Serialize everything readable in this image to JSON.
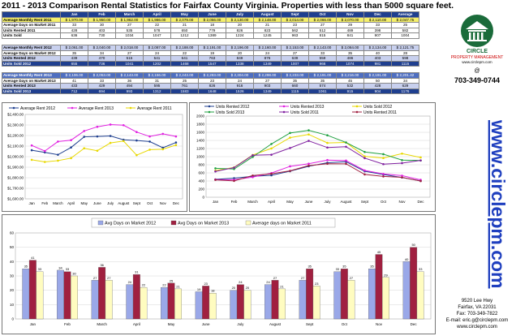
{
  "title": "2011 - 2013 Comparison Rental Statistics for Fairfax County Virginia. Properties with less than 5000 square feet.",
  "months_short": [
    "Jan",
    "Feb",
    "March",
    "April",
    "May",
    "June",
    "July",
    "August",
    "Sept",
    "Oct",
    "Nov",
    "Dec"
  ],
  "tables": [
    {
      "rows": [
        {
          "label": "Average Monthly Rent 2011",
          "cls": "r-rent",
          "values": [
            "$ 1,970.00",
            "$ 1,950.00",
            "$ 1,962.00",
            "$ 1,986.00",
            "$ 2,079.00",
            "$ 2,056.00",
            "$ 2,130.00",
            "$ 2,148.00",
            "$ 2,014.00",
            "$ 2,066.00",
            "$ 2,070.00",
            "$ 2,110.00",
            "$ 2,047.75"
          ]
        },
        {
          "label": "Average Days on Market 2011",
          "cls": "r-avg",
          "values": [
            "33",
            "30",
            "27",
            "22",
            "21",
            "18",
            "20",
            "21",
            "23",
            "27",
            "29",
            "33",
            "25"
          ]
        },
        {
          "label": "Units Rented 2011",
          "cls": "r-rented11",
          "values": [
            "428",
            "403",
            "535",
            "578",
            "650",
            "779",
            "826",
            "823",
            "562",
            "512",
            "489",
            "398",
            "582"
          ]
        },
        {
          "label": "Units Sold",
          "cls": "r-sold11",
          "values": [
            "636",
            "730",
            "1034",
            "1047",
            "1212",
            "1389",
            "1224",
            "1245",
            "963",
            "815",
            "841",
            "907",
            "1004"
          ]
        }
      ]
    },
    {
      "rows": [
        {
          "label": "Average Monthly Rent 2012",
          "cls": "r-avg12",
          "values": [
            "$ 2,061.00",
            "$ 2,040.00",
            "$ 2,018.00",
            "$ 2,087.00",
            "$ 2,188.00",
            "$ 2,191.00",
            "$ 2,196.00",
            "$ 2,160.00",
            "$ 2,153.00",
            "$ 2,143.00",
            "$ 2,084.00",
            "$ 2,134.00",
            "$ 2,121.75"
          ]
        },
        {
          "label": "Average Days on Market 2012",
          "cls": "r-avg",
          "values": [
            "35",
            "34",
            "27",
            "24",
            "22",
            "19",
            "20",
            "24",
            "27",
            "33",
            "35",
            "40",
            "28"
          ]
        },
        {
          "label": "Units Rented 2012",
          "cls": "r-rented",
          "values": [
            "439",
            "470",
            "515",
            "541",
            "641",
            "763",
            "849",
            "876",
            "639",
            "559",
            "486",
            "403",
            "598"
          ]
        },
        {
          "label": "Units Sold 2012",
          "cls": "r-sold",
          "values": [
            "655",
            "736",
            "1041",
            "1202",
            "1468",
            "1547",
            "1338",
            "1349",
            "1007",
            "966",
            "1074",
            "981",
            "1115"
          ]
        }
      ]
    },
    {
      "rows": [
        {
          "label": "Average Monthly Rent 2013",
          "cls": "r-rent13",
          "values": [
            "$ 2,106.00",
            "$ 2,053.00",
            "$ 2,143.00",
            "$ 2,156.00",
            "$ 2,243.00",
            "$ 2,283.00",
            "$ 2,304.00",
            "$ 2,298.00",
            "$ 2,233.00",
            "$ 2,191.00",
            "$ 2,216.00",
            "$ 2,191.00",
            "$ 2,201.42"
          ]
        },
        {
          "label": "Average Days on Market 2013",
          "cls": "r-avg",
          "values": [
            "41",
            "33",
            "36",
            "31",
            "25",
            "23",
            "24",
            "27",
            "35",
            "35",
            "45",
            "50",
            "34"
          ]
        },
        {
          "label": "Units Rented 2013",
          "cls": "r-rented",
          "values": [
            "433",
            "429",
            "494",
            "595",
            "761",
            "826",
            "916",
            "903",
            "660",
            "574",
            "532",
            "428",
            "629"
          ]
        },
        {
          "label": "Units Sold 2013",
          "cls": "r-sold",
          "values": [
            "712",
            "694",
            "993",
            "1312",
            "1583",
            "1648",
            "1526",
            "1349",
            "1115",
            "1061",
            "915",
            "904",
            "1176"
          ]
        }
      ]
    }
  ],
  "table_header": [
    "Jan",
    "Feb",
    "March",
    "April",
    "May",
    "June",
    "July",
    "August",
    "Sept",
    "Oct",
    "Nov",
    "Dec",
    "Average"
  ],
  "chart_data": [
    {
      "type": "line",
      "categories": [
        "Jan",
        "Feb",
        "March",
        "April",
        "May",
        "June",
        "July",
        "August",
        "Sept",
        "Oct",
        "Nov",
        "Dec"
      ],
      "ylim": [
        1600,
        2400
      ],
      "yticks": [
        "$1,600.00",
        "$1,700.00",
        "$1,800.00",
        "$1,900.00",
        "$2,000.00",
        "$2,100.00",
        "$2,200.00",
        "$2,300.00",
        "$2,400.00"
      ],
      "legend_position": "top",
      "series": [
        {
          "name": "Average Rent 2012",
          "color": "#1f3f8f",
          "values": [
            2061,
            2040,
            2018,
            2087,
            2188,
            2191,
            2196,
            2160,
            2153,
            2143,
            2084,
            2134
          ]
        },
        {
          "name": "Average Rent 2013",
          "color": "#e020e0",
          "values": [
            2106,
            2053,
            2143,
            2156,
            2243,
            2283,
            2304,
            2298,
            2233,
            2191,
            2216,
            2191
          ]
        },
        {
          "name": "Average Rent 2011",
          "color": "#e8d800",
          "values": [
            1970,
            1950,
            1962,
            1986,
            2079,
            2056,
            2130,
            2148,
            2014,
            2066,
            2070,
            2110
          ]
        }
      ]
    },
    {
      "type": "line",
      "categories": [
        "Jan",
        "Feb",
        "March",
        "April",
        "May",
        "June",
        "July",
        "August",
        "Sept",
        "Oct",
        "Nov",
        "Dec"
      ],
      "ylim": [
        0,
        2000
      ],
      "yticks": [
        "0",
        "200",
        "400",
        "600",
        "800",
        "1000",
        "1200",
        "1400",
        "1600",
        "1800",
        "2000"
      ],
      "legend_position": "top",
      "series": [
        {
          "name": "Units Rented 2012",
          "color": "#1f3f8f",
          "values": [
            439,
            470,
            515,
            541,
            641,
            763,
            849,
            876,
            639,
            559,
            486,
            403
          ]
        },
        {
          "name": "Units Rented 2013",
          "color": "#e020e0",
          "values": [
            433,
            429,
            494,
            595,
            761,
            826,
            916,
            903,
            660,
            574,
            532,
            428
          ]
        },
        {
          "name": "Units Sold 2012",
          "color": "#e8d800",
          "values": [
            655,
            736,
            1041,
            1202,
            1468,
            1547,
            1338,
            1349,
            1007,
            966,
            1074,
            981
          ]
        },
        {
          "name": "Units Sold 2013",
          "color": "#20a040",
          "values": [
            712,
            694,
            993,
            1312,
            1583,
            1648,
            1526,
            1349,
            1115,
            1061,
            915,
            904
          ]
        },
        {
          "name": "Units Sold 2011",
          "color": "#8020a0",
          "values": [
            636,
            730,
            1034,
            1047,
            1212,
            1389,
            1224,
            1245,
            963,
            815,
            841,
            907
          ]
        },
        {
          "name": "Units Rented 2011",
          "color": "#a02040",
          "values": [
            428,
            403,
            535,
            578,
            650,
            779,
            826,
            823,
            562,
            512,
            489,
            398
          ]
        }
      ]
    },
    {
      "type": "bar",
      "categories": [
        "Jan",
        "Feb",
        "March",
        "April",
        "May",
        "June",
        "July",
        "August",
        "Sept",
        "Oct",
        "Nov",
        "Dec"
      ],
      "ylim": [
        0,
        60
      ],
      "yticks": [
        "0",
        "10",
        "20",
        "30",
        "40",
        "50",
        "60"
      ],
      "legend_position": "top",
      "series": [
        {
          "name": "Avg Days on Market 2012",
          "color": "#9aa8e8",
          "values": [
            35,
            34,
            27,
            24,
            22,
            19,
            20,
            24,
            27,
            33,
            35,
            40
          ]
        },
        {
          "name": "Avg Days on Market 2013",
          "color": "#a02040",
          "values": [
            41,
            33,
            36,
            31,
            25,
            23,
            24,
            27,
            35,
            35,
            45,
            50
          ]
        },
        {
          "name": "Average days on Market 2011",
          "color": "#fffcc0",
          "values": [
            33,
            30,
            27,
            22,
            21,
            18,
            20,
            21,
            23,
            27,
            29,
            33
          ]
        }
      ]
    }
  ],
  "brand": {
    "name": "CIRCLE",
    "subtitle": "PROPERTY MANAGEMENT",
    "site_small": "www.circlepm.com",
    "at": "@",
    "phone": "703-349-0744",
    "url_vertical": "www.circlepm.com",
    "address1": "9520 Lee Hwy",
    "address2": "Fairfax, VA 22031",
    "fax": "Fax: 703-349-7822",
    "email": "E-mail: eric.g@circlepm.com",
    "site": "www.circlepm.com",
    "green": "#1a6b3a"
  }
}
